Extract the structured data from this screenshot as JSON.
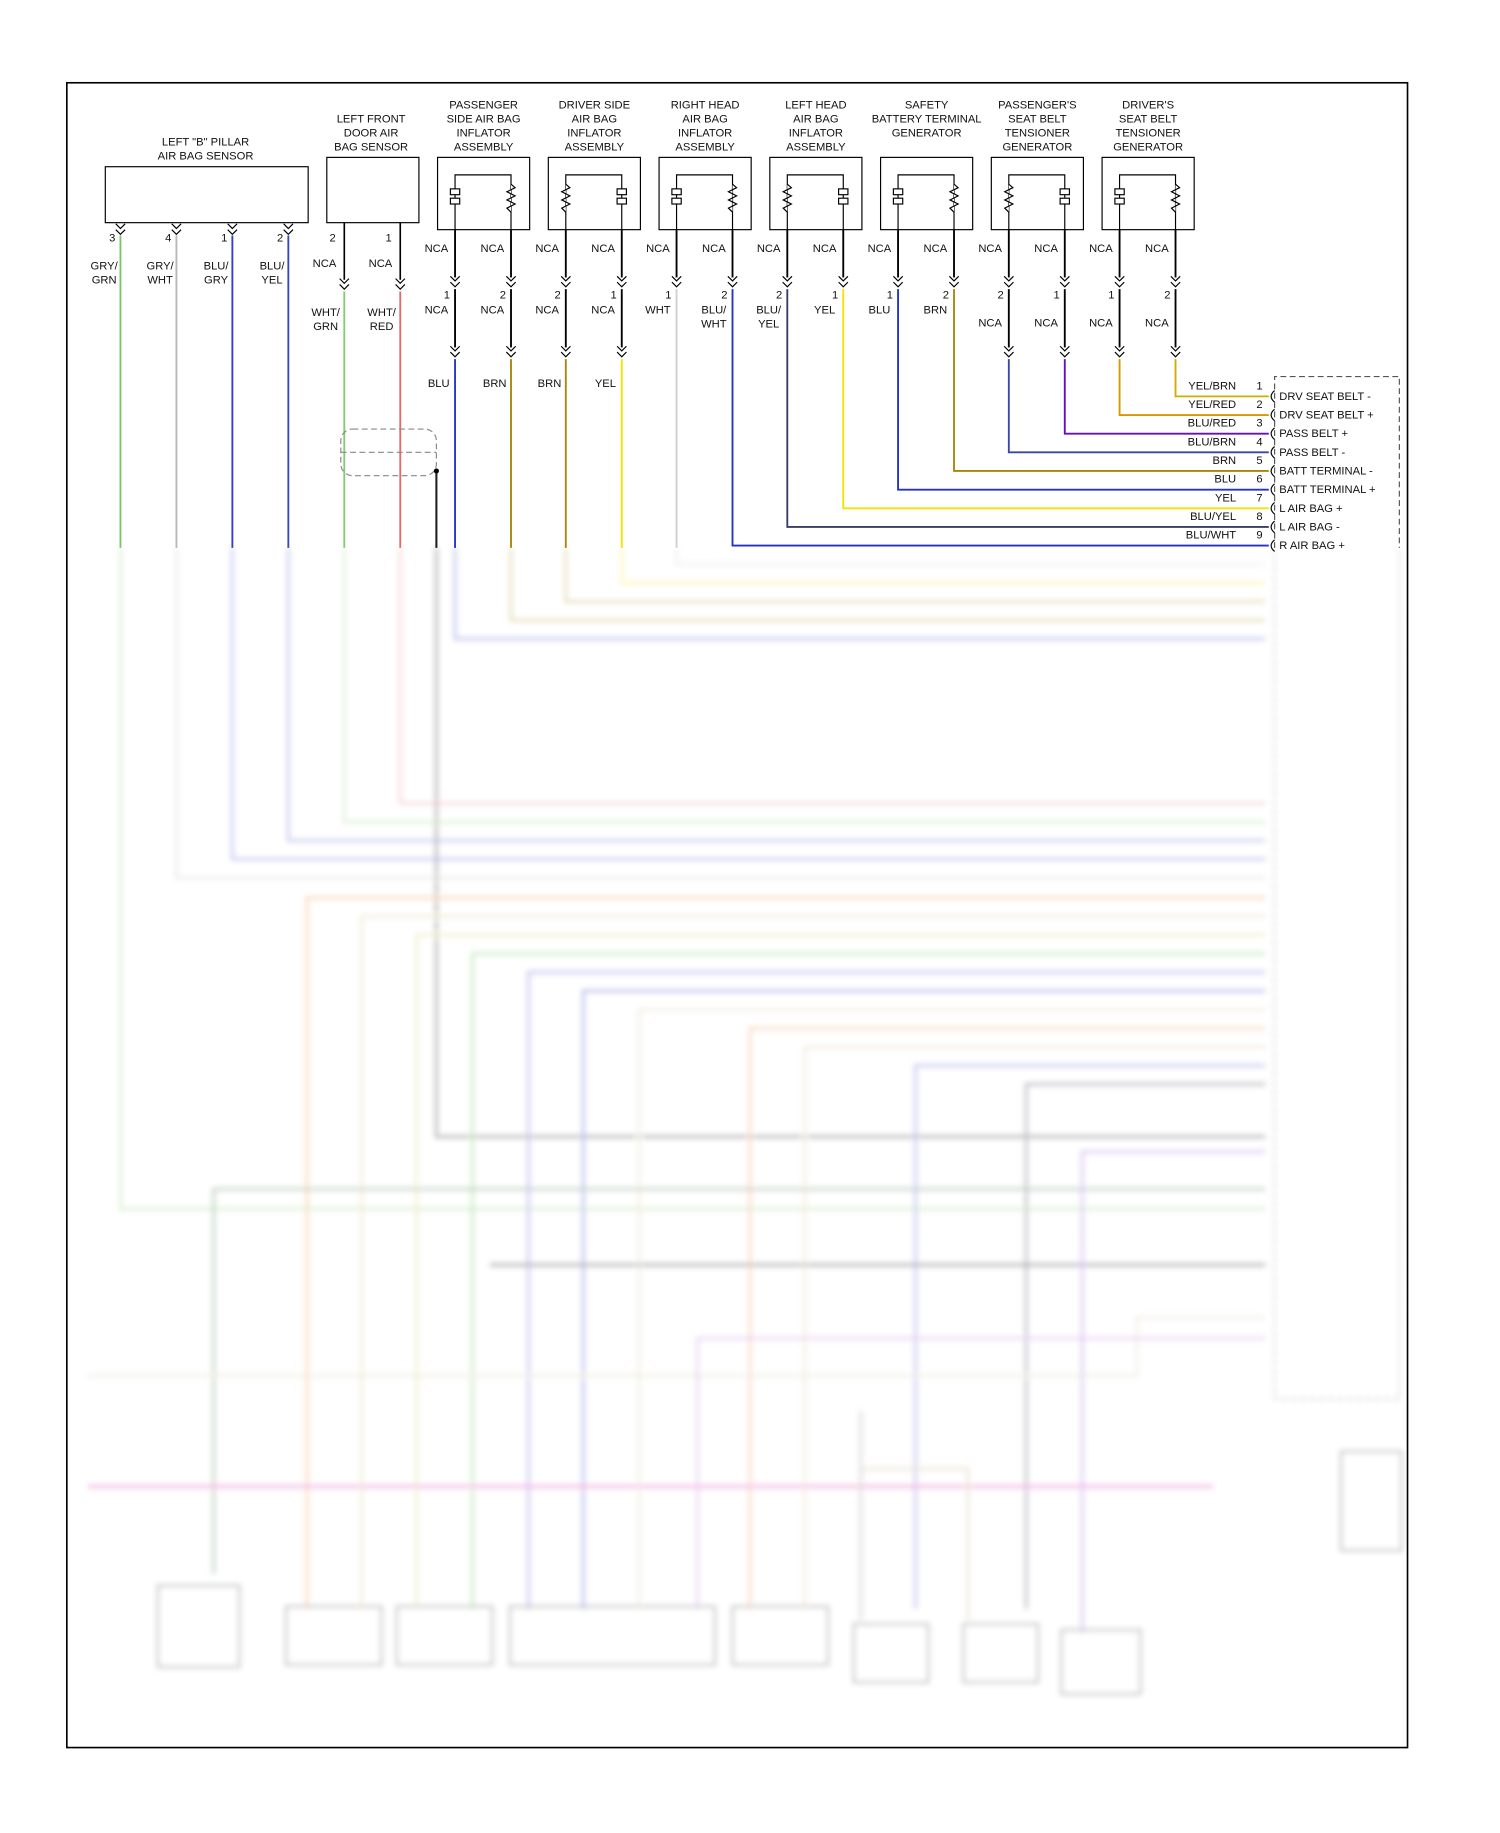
{
  "pillar_sensor": {
    "title_lines": [
      "LEFT \"B\" PILLAR",
      "AIR BAG SENSOR"
    ],
    "pins": [
      {
        "number": "3",
        "wire_lines": [
          "GRY/",
          "GRN"
        ]
      },
      {
        "number": "4",
        "wire_lines": [
          "GRY/",
          "WHT"
        ]
      },
      {
        "number": "1",
        "wire_lines": [
          "BLU/",
          "GRY"
        ]
      },
      {
        "number": "2",
        "wire_lines": [
          "BLU/",
          "YEL"
        ]
      }
    ]
  },
  "door_sensor": {
    "title_lines": [
      "LEFT FRONT",
      "DOOR AIR",
      "BAG SENSOR"
    ],
    "pins": [
      {
        "number": "2",
        "top": "NCA",
        "wire_lines": [
          "WHT/",
          "GRN"
        ]
      },
      {
        "number": "1",
        "top": "NCA",
        "wire_lines": [
          "WHT/",
          "RED"
        ]
      }
    ]
  },
  "inflators": [
    {
      "title_lines": [
        "PASSENGER",
        "SIDE AIR BAG",
        "INFLATOR",
        "ASSEMBLY"
      ],
      "pins": [
        {
          "top": "NCA",
          "number": "1",
          "lower_lines": [
            "NCA"
          ],
          "wire_lines": [
            "BLU"
          ]
        },
        {
          "top": "NCA",
          "number": "2",
          "lower_lines": [
            "NCA"
          ],
          "wire_lines": [
            "BRN"
          ]
        }
      ]
    },
    {
      "title_lines": [
        "DRIVER SIDE",
        "AIR BAG",
        "INFLATOR",
        "ASSEMBLY"
      ],
      "pins": [
        {
          "top": "NCA",
          "number": "2",
          "lower_lines": [
            "NCA"
          ],
          "wire_lines": [
            "BRN"
          ]
        },
        {
          "top": "NCA",
          "number": "1",
          "lower_lines": [
            "NCA"
          ],
          "wire_lines": [
            "YEL"
          ]
        }
      ]
    },
    {
      "title_lines": [
        "RIGHT HEAD",
        "AIR BAG",
        "INFLATOR",
        "ASSEMBLY"
      ],
      "pins": [
        {
          "top": "NCA",
          "number": "1",
          "lower_lines": [
            "WHT"
          ]
        },
        {
          "top": "NCA",
          "number": "2",
          "lower_lines": [
            "BLU/",
            "WHT"
          ]
        }
      ]
    },
    {
      "title_lines": [
        "LEFT HEAD",
        "AIR BAG",
        "INFLATOR",
        "ASSEMBLY"
      ],
      "pins": [
        {
          "top": "NCA",
          "number": "2",
          "lower_lines": [
            "BLU/",
            "YEL"
          ]
        },
        {
          "top": "NCA",
          "number": "1",
          "lower_lines": [
            "YEL"
          ]
        }
      ]
    },
    {
      "title_lines": [
        "SAFETY",
        "BATTERY TERMINAL",
        "GENERATOR"
      ],
      "pins": [
        {
          "top": "NCA",
          "number": "1",
          "lower_lines": [
            "BLU"
          ]
        },
        {
          "top": "NCA",
          "number": "2",
          "lower_lines": [
            "BRN"
          ]
        }
      ]
    },
    {
      "title_lines": [
        "PASSENGER'S",
        "SEAT BELT",
        "TENSIONER",
        "GENERATOR"
      ],
      "pins": [
        {
          "top": "NCA",
          "number": "2",
          "lower_lines": [
            "NCA"
          ]
        },
        {
          "top": "NCA",
          "number": "1",
          "lower_lines": [
            "NCA"
          ]
        }
      ]
    },
    {
      "title_lines": [
        "DRIVER'S",
        "SEAT BELT",
        "TENSIONER",
        "GENERATOR"
      ],
      "pins": [
        {
          "top": "NCA",
          "number": "1",
          "lower_lines": [
            "NCA"
          ]
        },
        {
          "top": "NCA",
          "number": "2",
          "lower_lines": [
            "NCA"
          ]
        }
      ]
    }
  ],
  "connector": {
    "pins": [
      {
        "number": "1",
        "wire": "YEL/BRN",
        "name": "DRV SEAT BELT -"
      },
      {
        "number": "2",
        "wire": "YEL/RED",
        "name": "DRV SEAT BELT +"
      },
      {
        "number": "3",
        "wire": "BLU/RED",
        "name": "PASS BELT +"
      },
      {
        "number": "4",
        "wire": "BLU/BRN",
        "name": "PASS BELT -"
      },
      {
        "number": "5",
        "wire": "BRN",
        "name": "BATT TERMINAL -"
      },
      {
        "number": "6",
        "wire": "BLU",
        "name": "BATT TERMINAL +"
      },
      {
        "number": "7",
        "wire": "YEL",
        "name": "L AIR BAG +"
      },
      {
        "number": "8",
        "wire": "BLU/YEL",
        "name": "L AIR BAG -"
      },
      {
        "number": "9",
        "wire": "BLU/WHT",
        "name": "R AIR BAG +"
      }
    ]
  }
}
